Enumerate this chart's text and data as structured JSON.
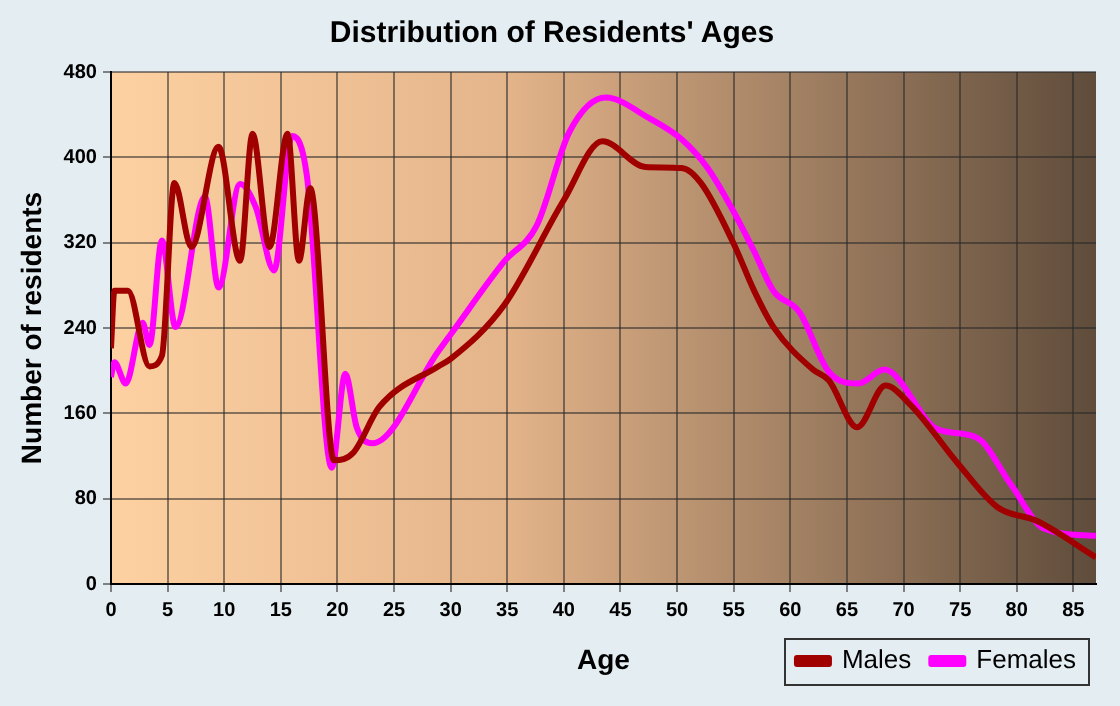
{
  "chart_data": {
    "type": "line",
    "title": "Distribution of Residents' Ages",
    "xlabel": "Age",
    "ylabel": "Number of residents",
    "xlim": [
      0,
      87
    ],
    "xticks": [
      0,
      5,
      10,
      15,
      20,
      25,
      30,
      35,
      40,
      45,
      50,
      55,
      60,
      65,
      70,
      75,
      80,
      85
    ],
    "ylim": [
      0,
      480
    ],
    "yticks": [
      0,
      80,
      160,
      240,
      320,
      400,
      480
    ],
    "grid": true,
    "legend": "bottom right",
    "marker": "none",
    "line_style": "solid",
    "series": [
      {
        "name": "Males",
        "color": "#a00000",
        "x": [
          0,
          0.3,
          1.5,
          3.4,
          4.5,
          5.6,
          7.1,
          9.5,
          11.4,
          12.5,
          14,
          15.6,
          16.6,
          17.6,
          19.7,
          21.4,
          23.7,
          28.9,
          30,
          34.7,
          40,
          43.4,
          47.2,
          50.4,
          52.1,
          55,
          56.8,
          58.5,
          62,
          63.4,
          65.9,
          68.4,
          70.7,
          74.8,
          78.3,
          81.8,
          87
        ],
        "values": [
          221,
          275,
          275,
          204,
          214,
          376,
          316,
          410,
          303,
          422,
          316,
          422,
          303,
          371,
          116,
          123,
          166,
          204,
          211,
          261,
          360,
          415,
          391,
          390,
          376,
          319,
          275,
          241,
          201,
          191,
          147,
          186,
          167,
          113,
          72,
          59,
          25
        ]
      },
      {
        "name": "Females",
        "color": "#ff00ff",
        "x": [
          0,
          0.3,
          1.3,
          2.8,
          3.4,
          4.5,
          5.7,
          8.3,
          9.5,
          11.4,
          12.8,
          14.4,
          16,
          17.3,
          19.5,
          20.7,
          21.7,
          23.1,
          28.9,
          30,
          34.7,
          37.6,
          40.5,
          43.7,
          47.5,
          50.4,
          52.7,
          55,
          56.8,
          58.5,
          60.8,
          63.4,
          66,
          68.3,
          73,
          76.5,
          79.5,
          82.4,
          87
        ],
        "values": [
          194,
          208,
          188,
          245,
          224,
          322,
          241,
          363,
          278,
          375,
          353,
          294,
          420,
          383,
          109,
          197,
          147,
          132,
          218,
          234,
          302,
          336,
          424,
          456,
          437,
          417,
          390,
          349,
          312,
          275,
          255,
          199,
          188,
          201,
          145,
          137,
          93,
          52,
          45
        ]
      }
    ]
  }
}
